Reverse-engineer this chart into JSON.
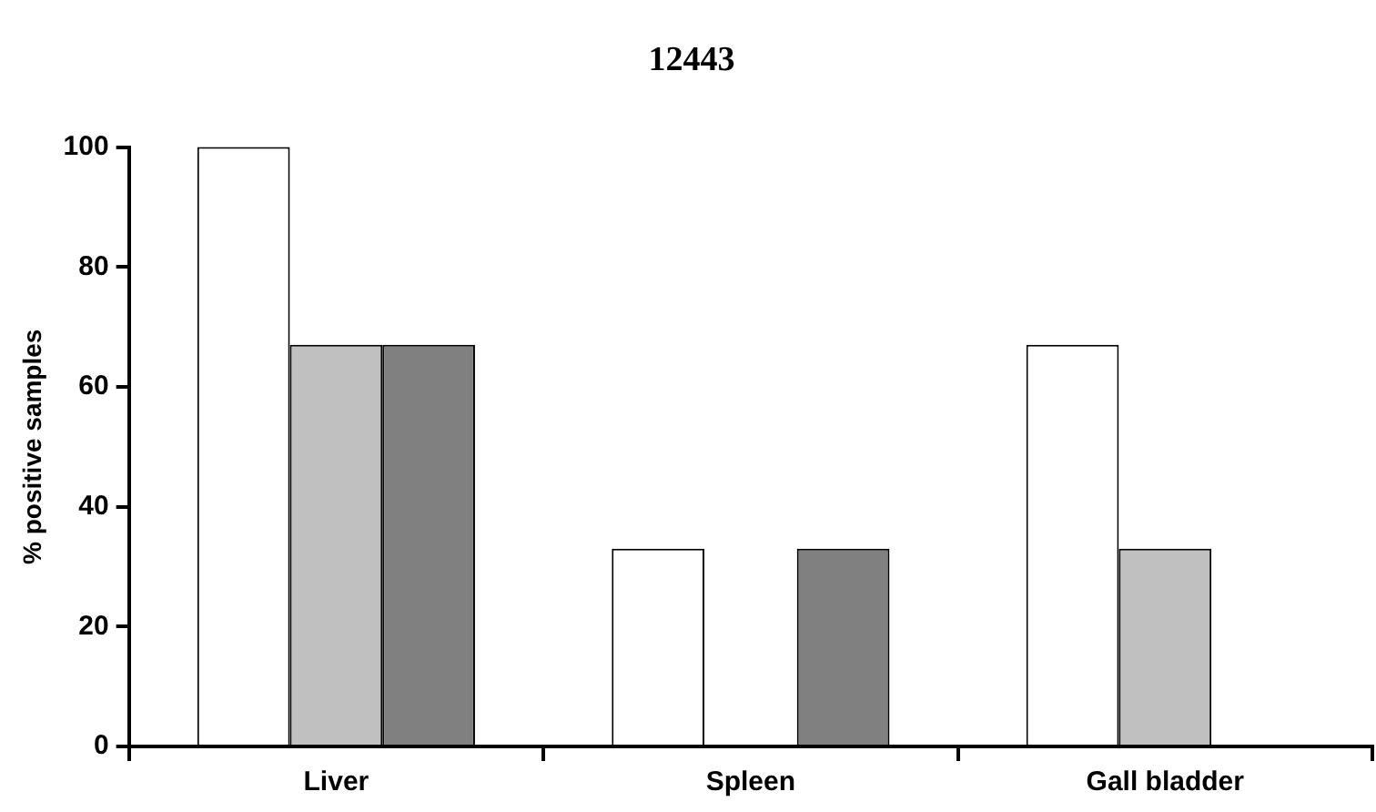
{
  "chart_data": {
    "type": "bar",
    "title": "12443",
    "ylabel": "% positive samples",
    "categories": [
      "Liver",
      "Spleen",
      "Gall bladder"
    ],
    "series": [
      {
        "color": "#ffffff",
        "values": [
          100,
          33,
          67
        ]
      },
      {
        "color": "#c0c0c0",
        "values": [
          67,
          0,
          33
        ]
      },
      {
        "color": "#808080",
        "values": [
          67,
          33,
          0
        ]
      }
    ],
    "ylim": [
      0,
      100
    ],
    "yticks": [
      0,
      20,
      40,
      60,
      80,
      100
    ]
  }
}
